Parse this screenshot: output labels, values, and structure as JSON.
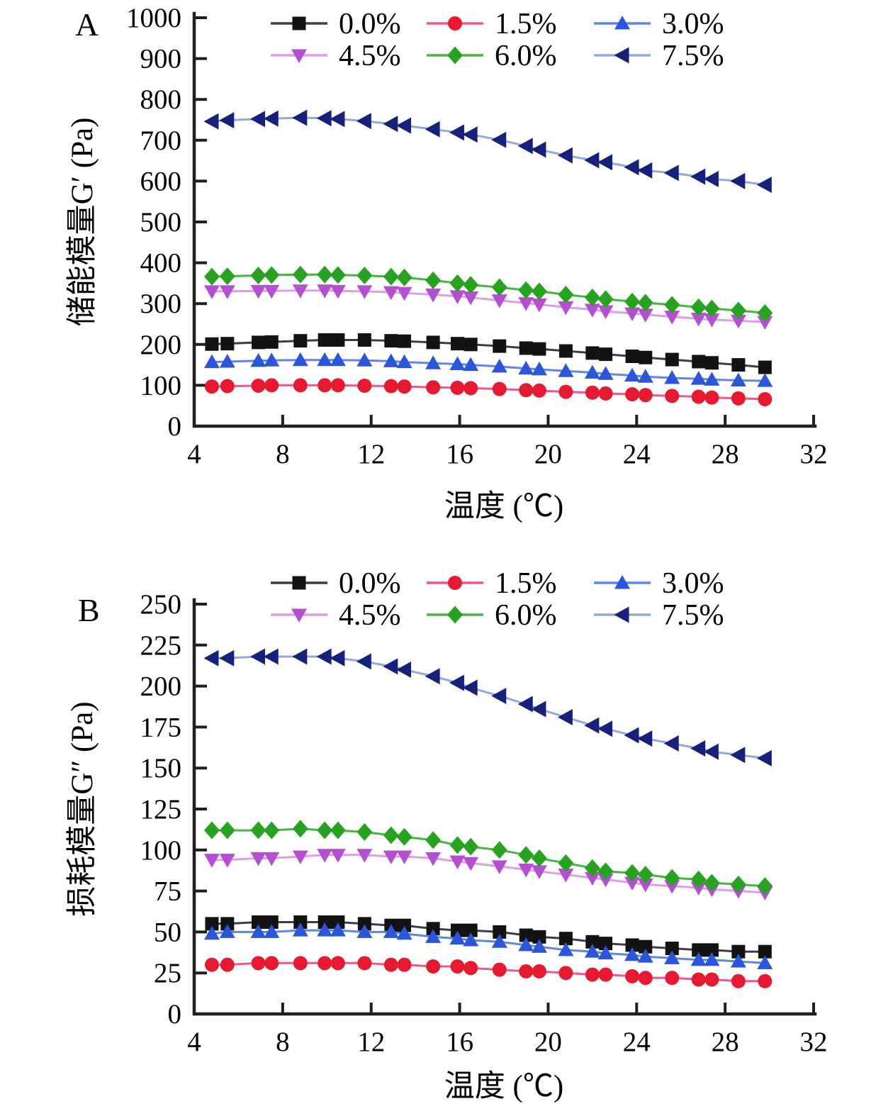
{
  "figure": {
    "background": "#ffffff",
    "axis_color": "#1f1f1f",
    "text_color": "#000000"
  },
  "chart_data": [
    {
      "panel_label": "A",
      "type": "line",
      "xlabel": "温度 (℃)",
      "ylabel": "储能模量G′ (Pa)",
      "xlim": [
        4,
        32
      ],
      "ylim": [
        0,
        1000
      ],
      "xticks": [
        4,
        8,
        12,
        16,
        20,
        24,
        28,
        32
      ],
      "yticks": [
        0,
        100,
        200,
        300,
        400,
        500,
        600,
        700,
        800,
        900,
        1000
      ],
      "grid": false,
      "legend_position": "top-inside",
      "x": [
        4.8,
        5.5,
        6.9,
        7.5,
        8.8,
        9.9,
        10.5,
        11.7,
        12.9,
        13.5,
        14.8,
        15.9,
        16.5,
        17.8,
        19.0,
        19.6,
        20.8,
        22.0,
        22.6,
        23.8,
        24.4,
        25.6,
        26.8,
        27.4,
        28.6,
        29.8
      ],
      "series": [
        {
          "name": "0.0%",
          "marker": "square",
          "marker_color": "#131313",
          "line_color": "#3c3c50",
          "values": [
            201,
            202,
            205,
            206,
            209,
            211,
            211,
            211,
            209,
            208,
            205,
            202,
            200,
            196,
            191,
            189,
            184,
            179,
            176,
            171,
            168,
            163,
            158,
            155,
            150,
            144
          ]
        },
        {
          "name": "1.5%",
          "marker": "circle",
          "marker_color": "#e51a30",
          "line_color": "#f2558a",
          "values": [
            97,
            98,
            99,
            100,
            100,
            100,
            100,
            99,
            98,
            97,
            95,
            94,
            93,
            91,
            88,
            87,
            84,
            82,
            80,
            78,
            76,
            74,
            72,
            70,
            68,
            66
          ]
        },
        {
          "name": "3.0%",
          "marker": "triangle-up",
          "marker_color": "#2c56d8",
          "line_color": "#5f85e8",
          "values": [
            157,
            158,
            160,
            161,
            162,
            162,
            162,
            161,
            159,
            157,
            154,
            152,
            150,
            146,
            141,
            139,
            135,
            131,
            128,
            124,
            121,
            118,
            116,
            114,
            112,
            111
          ]
        },
        {
          "name": "4.5%",
          "marker": "triangle-down",
          "marker_color": "#b44fd2",
          "line_color": "#df9ce8",
          "values": [
            330,
            330,
            331,
            331,
            332,
            332,
            331,
            330,
            328,
            326,
            322,
            318,
            315,
            308,
            301,
            298,
            291,
            285,
            281,
            276,
            273,
            268,
            263,
            261,
            258,
            255
          ]
        },
        {
          "name": "6.0%",
          "marker": "diamond",
          "marker_color": "#28a221",
          "line_color": "#44b83e",
          "values": [
            366,
            367,
            369,
            370,
            371,
            371,
            370,
            369,
            366,
            364,
            357,
            350,
            346,
            340,
            333,
            330,
            322,
            315,
            311,
            305,
            302,
            297,
            291,
            288,
            283,
            277
          ]
        },
        {
          "name": "7.5%",
          "marker": "triangle-left",
          "marker_color": "#16217c",
          "line_color": "#93a8e0",
          "values": [
            746,
            749,
            752,
            753,
            755,
            754,
            752,
            747,
            740,
            736,
            727,
            719,
            714,
            701,
            686,
            677,
            663,
            651,
            646,
            634,
            626,
            620,
            611,
            605,
            600,
            591
          ]
        }
      ]
    },
    {
      "panel_label": "B",
      "type": "line",
      "xlabel": "温度 (℃)",
      "ylabel": "损耗模量G″ (Pa)",
      "xlim": [
        4,
        32
      ],
      "ylim": [
        0,
        250
      ],
      "xticks": [
        4,
        8,
        12,
        16,
        20,
        24,
        28,
        32
      ],
      "yticks": [
        0,
        25,
        50,
        75,
        100,
        125,
        150,
        175,
        200,
        225,
        250
      ],
      "grid": false,
      "legend_position": "top-inside",
      "x": [
        4.8,
        5.5,
        6.9,
        7.5,
        8.8,
        9.9,
        10.5,
        11.7,
        12.9,
        13.5,
        14.8,
        15.9,
        16.5,
        17.8,
        19.0,
        19.6,
        20.8,
        22.0,
        22.6,
        23.8,
        24.4,
        25.6,
        26.8,
        27.4,
        28.6,
        29.8
      ],
      "series": [
        {
          "name": "0.0%",
          "marker": "square",
          "marker_color": "#131313",
          "line_color": "#3c3c50",
          "values": [
            55,
            55,
            56,
            56,
            56,
            56,
            56,
            55,
            54,
            54,
            52,
            51,
            51,
            50,
            48,
            47,
            46,
            44,
            43,
            42,
            41,
            40,
            39,
            39,
            38,
            38
          ]
        },
        {
          "name": "1.5%",
          "marker": "circle",
          "marker_color": "#e51a30",
          "line_color": "#f2558a",
          "values": [
            30,
            30,
            31,
            31,
            31,
            31,
            31,
            31,
            30,
            30,
            29,
            29,
            28,
            27,
            26,
            26,
            25,
            24,
            24,
            23,
            22,
            22,
            21,
            21,
            20,
            20
          ]
        },
        {
          "name": "3.0%",
          "marker": "triangle-up",
          "marker_color": "#2c56d8",
          "line_color": "#5f85e8",
          "values": [
            49,
            50,
            50,
            50,
            51,
            51,
            51,
            50,
            50,
            49,
            47,
            46,
            45,
            44,
            42,
            41,
            39,
            38,
            37,
            36,
            35,
            34,
            33,
            33,
            32,
            31
          ]
        },
        {
          "name": "4.5%",
          "marker": "triangle-down",
          "marker_color": "#b44fd2",
          "line_color": "#df9ce8",
          "values": [
            94,
            94,
            95,
            95,
            96,
            97,
            97,
            97,
            96,
            96,
            95,
            93,
            92,
            90,
            88,
            87,
            85,
            83,
            82,
            80,
            79,
            78,
            77,
            76,
            75,
            74
          ]
        },
        {
          "name": "6.0%",
          "marker": "diamond",
          "marker_color": "#28a221",
          "line_color": "#44b83e",
          "values": [
            112,
            112,
            112,
            112,
            113,
            112,
            112,
            111,
            109,
            108,
            106,
            103,
            102,
            100,
            97,
            95,
            92,
            89,
            87,
            86,
            85,
            83,
            82,
            80,
            79,
            78
          ]
        },
        {
          "name": "7.5%",
          "marker": "triangle-left",
          "marker_color": "#16217c",
          "line_color": "#93a8e0",
          "values": [
            217,
            217,
            218,
            218,
            218,
            218,
            217,
            215,
            212,
            210,
            206,
            202,
            199,
            194,
            189,
            186,
            181,
            176,
            174,
            170,
            168,
            165,
            162,
            160,
            158,
            156
          ]
        }
      ]
    }
  ]
}
